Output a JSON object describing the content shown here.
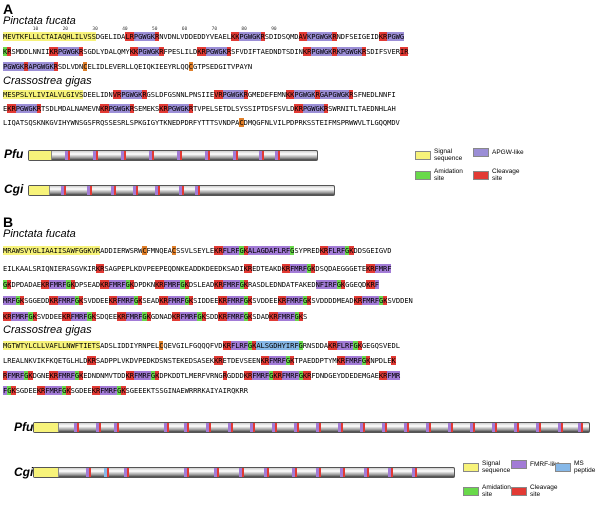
{
  "panels": {
    "a": {
      "letter": "A",
      "pfu_title": "Pinctata fucata",
      "cgi_title": "Crassostrea gigas",
      "pfu_seq": [
        "MEVTKFLLLCTAIAQHLILVSSDGELIDALRPGWGKRNVDNLVDDEDDYVEAELKKPGWGKRSDIDSQMDAVKPGWGKRNDFSEIGEIDKRPGWG",
        "KRSMDDLNNIIKRPGWGKRSGDLYDALQMYKKPGWGKRFPESLILDKRPGWGKRSFVDIFTAEDNDTSDINKRPGWGKRKPGWGKRSDIFSVERIR",
        "PGWGKRAPGWGKRSDLVDNCELIDLEVERLLQEIQKIEEYRLQQCGTPSEDGITVPAYN"
      ],
      "cgi_seq": [
        "MESPSLYLIVIALVLGIVSDEELIDNVRPGWGKRGSLDFGSNNLPNSIIEVRPGWGKRGMEDEFEMNKKPGWGKRGAPGWGKRSFNEDLNNFI",
        "EKRPGWGKRTSDLMDALNAMEVNKRPGWGKRSEMEKSKRPGWGKRTVPELSETDLSYSSIPTDSFSVLDKRPGWGKRSWRNITLTAEDNHLAH",
        "LIQATSQSKNKGVIHYWNSGSFRQSSESRLSPKGIGYTKNEDPDRFYTTTSVNDPACDMQGFNLVILPDPRKSSTEIFMSPRWWVLTLGQQMDV"
      ],
      "map_pfu": "Pfu",
      "map_cgi": "Cgi"
    },
    "b": {
      "letter": "B",
      "pfu_title": "Pinctata fucata",
      "cgi_title": "Crassostrea gigas",
      "pfu_seq": [
        "MRAWSVYGLIAAIISAWFGGKVRADDIERWSRWCFMNQEACSSVLSEYLEKRFLRFGKALAGDAFLRFGSYPREDKRFLRFGKDDSGEIGVD",
        "EILKAALSRIQNIERASGVKIRKRSAGPEPLKDVPEEPEQDNKEADDKDEEDKSADIKREDTEAKDKRFMRFGKDSQDAEGGGETEKRFMRF",
        "GKDPDADAEKRFMRFGKDPSEADKRFMRFGKDPDKNKRFMRFGKDSLEADKRFMRFGKRASDLEDNDATFAKEDNFIRFGKGGEQDKRF",
        "MRFGKSGGEDDKRFMRFGKSVDDEEKRFMRFGKSEADKRFMRFGKSIDDEEKRFMRFGKSVDDEEKRFMRFGKSVDDDDMEADKRFMRFGKSVDDEN",
        "KRFMRFGKSVDDEEKRFMRFGKSDQEEKRFMRFGKGDNADKRFMRFGKSDDKRFMRFGKSDADKRFMRFGKS"
      ],
      "cgi_seq": [
        "MGTWTYLCLLVAFLLNWFTIETSADSLIDDIYRNPELCQEVGILFGQQQFVDKRFLRFGKALSGDHYIRFGRNSDDAKRFLRFGKGEGQSVEDL",
        "LREALNKVIKFKQETGLHLDKRSADPPLVKDVPEDKDSNSTEKEDSASEKKRETDEVSEENKRFMRFGKTPAEDDPTYMKRFMRFGKNPDLEK",
        "RFMRFGKDGNEKRFMRFGKEDNDNMVTDDKRFMRFGKDPKDDTLMERFVRNGRGDDDKRFMRFGKRFMRFGKRFDNDGEYDDEDEMGAEKRFMR",
        "FGKSGDEEKRFMRFGKSGDEEKRFMRFGKSGEEEKTSSGINAEWRRRKAIYAIRQKRR"
      ],
      "map_pfu": "Pfu",
      "map_cgi": "Cgi"
    }
  },
  "legend_a": {
    "signal": "Signal sequence",
    "apgw": "APGW-like",
    "amid": "Amidation site",
    "cleave": "Cleavage site"
  },
  "legend_b": {
    "signal": "Signal sequence",
    "fmrf": "FMRF-like",
    "ms": "MS peptide",
    "amid": "Amidation site",
    "cleave": "Cleavage site"
  },
  "colors": {
    "signal": "#f7f37a",
    "apgw": "#9b8ed6",
    "fmrf": "#a27bd6",
    "ms": "#86b8e8",
    "amid": "#69d94a",
    "cleave": "#e23a34",
    "cys": "#e07f2a"
  }
}
